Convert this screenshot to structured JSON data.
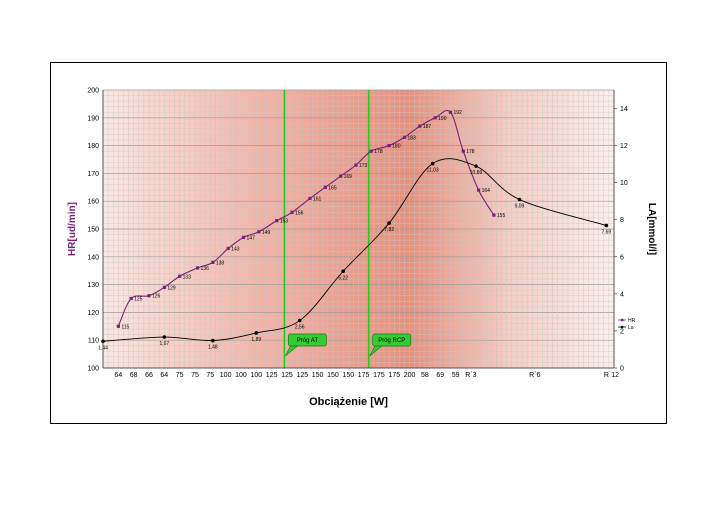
{
  "chart_data": {
    "type": "line",
    "xlabel": "Obciążenie [W]",
    "ylabel_left": "HR[ud/min]",
    "ylabel_right": "LA[mmol/l]",
    "y_left_range": [
      100,
      200
    ],
    "y_left_ticks": [
      "100",
      "110",
      "120",
      "130",
      "140",
      "150",
      "160",
      "170",
      "180",
      "190",
      "200"
    ],
    "y_right_range": [
      0,
      15
    ],
    "y_right_ticks": [
      "0",
      "2",
      "4",
      "6",
      "8",
      "10",
      "12",
      "14"
    ],
    "x_range": [
      0,
      100
    ],
    "x_ticks": [
      {
        "pos": 3.0,
        "label": "64"
      },
      {
        "pos": 6.0,
        "label": "68"
      },
      {
        "pos": 9.0,
        "label": "66"
      },
      {
        "pos": 12.0,
        "label": "64"
      },
      {
        "pos": 15.0,
        "label": "75"
      },
      {
        "pos": 18.0,
        "label": "75"
      },
      {
        "pos": 21.0,
        "label": "75"
      },
      {
        "pos": 24.0,
        "label": "100"
      },
      {
        "pos": 27.0,
        "label": "100"
      },
      {
        "pos": 30.0,
        "label": "100"
      },
      {
        "pos": 33.0,
        "label": "125"
      },
      {
        "pos": 36.0,
        "label": "125"
      },
      {
        "pos": 39.0,
        "label": "125"
      },
      {
        "pos": 42.0,
        "label": "150"
      },
      {
        "pos": 45.0,
        "label": "150"
      },
      {
        "pos": 48.0,
        "label": "150"
      },
      {
        "pos": 51.0,
        "label": "175"
      },
      {
        "pos": 54.0,
        "label": "175"
      },
      {
        "pos": 57.0,
        "label": "175"
      },
      {
        "pos": 60.0,
        "label": "200"
      },
      {
        "pos": 63.0,
        "label": "58"
      },
      {
        "pos": 66.0,
        "label": "69"
      },
      {
        "pos": 69.0,
        "label": "59"
      },
      {
        "pos": 72.0,
        "label": "R`3"
      },
      {
        "pos": 84.5,
        "label": "R`6"
      },
      {
        "pos": 99.5,
        "label": "R`12"
      }
    ],
    "series": [
      {
        "name": "HR",
        "axis": "left",
        "color": "#7a1f7a",
        "points": [
          {
            "x": 3.0,
            "y": 115,
            "label": "115"
          },
          {
            "x": 5.5,
            "y": 125,
            "label": "125"
          },
          {
            "x": 9.0,
            "y": 126,
            "label": "126"
          },
          {
            "x": 12.0,
            "y": 129,
            "label": "129"
          },
          {
            "x": 15.0,
            "y": 133,
            "label": "133"
          },
          {
            "x": 18.5,
            "y": 136,
            "label": "136"
          },
          {
            "x": 21.5,
            "y": 138,
            "label": "138"
          },
          {
            "x": 24.5,
            "y": 143,
            "label": "143"
          },
          {
            "x": 27.5,
            "y": 147,
            "label": "147"
          },
          {
            "x": 30.5,
            "y": 149,
            "label": "149"
          },
          {
            "x": 34.0,
            "y": 153,
            "label": "153"
          },
          {
            "x": 37.0,
            "y": 156,
            "label": "156"
          },
          {
            "x": 40.5,
            "y": 161,
            "label": "161"
          },
          {
            "x": 43.5,
            "y": 165,
            "label": "165"
          },
          {
            "x": 46.5,
            "y": 169,
            "label": "169"
          },
          {
            "x": 49.5,
            "y": 173,
            "label": "173"
          },
          {
            "x": 52.5,
            "y": 178,
            "label": "178"
          },
          {
            "x": 56.0,
            "y": 180,
            "label": "180"
          },
          {
            "x": 59.0,
            "y": 183,
            "label": "183"
          },
          {
            "x": 62.0,
            "y": 187,
            "label": "187"
          },
          {
            "x": 65.0,
            "y": 190,
            "label": "190"
          },
          {
            "x": 68.0,
            "y": 192,
            "label": "192"
          },
          {
            "x": 70.5,
            "y": 178,
            "label": "178"
          },
          {
            "x": 73.5,
            "y": 164,
            "label": "164"
          },
          {
            "x": 76.5,
            "y": 155,
            "label": "155"
          }
        ]
      },
      {
        "name": "La",
        "axis": "right",
        "color": "#000000",
        "points": [
          {
            "x": 0.0,
            "y": 1.44,
            "label": "1,44"
          },
          {
            "x": 12.0,
            "y": 1.67,
            "label": "1,67"
          },
          {
            "x": 21.5,
            "y": 1.48,
            "label": "1,48"
          },
          {
            "x": 30.0,
            "y": 1.89,
            "label": "1,89"
          },
          {
            "x": 38.5,
            "y": 2.56,
            "label": "2,56"
          },
          {
            "x": 47.0,
            "y": 5.22,
            "label": "5,22"
          },
          {
            "x": 56.0,
            "y": 7.82,
            "label": "7,82"
          },
          {
            "x": 64.5,
            "y": 11.03,
            "label": "11,03"
          },
          {
            "x": 73.0,
            "y": 10.89,
            "label": "10,89"
          },
          {
            "x": 81.5,
            "y": 9.09,
            "label": "9,09"
          },
          {
            "x": 98.5,
            "y": 7.69,
            "label": "7,69"
          }
        ]
      }
    ],
    "thresholds": [
      {
        "x": 35.5,
        "label": "Próg AT"
      },
      {
        "x": 52.0,
        "label": "Próg RCP"
      }
    ],
    "legend": {
      "position": "right",
      "items": [
        "HR",
        "La"
      ]
    }
  }
}
